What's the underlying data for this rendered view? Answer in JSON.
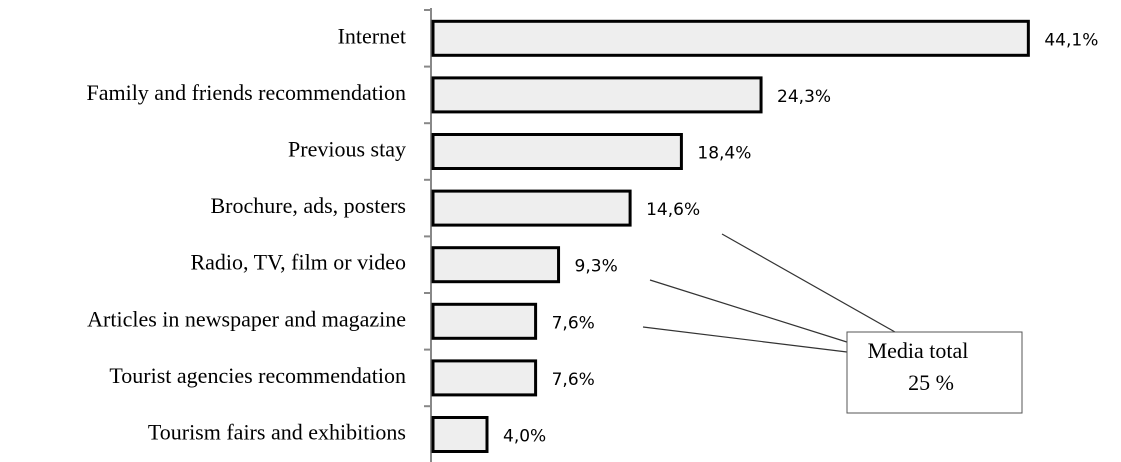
{
  "chart_data": {
    "type": "bar",
    "orientation": "horizontal",
    "categories": [
      "Internet",
      "Family and friends recommendation",
      "Previous stay",
      "Brochure, ads, posters",
      "Radio, TV, film or video",
      "Articles in newspaper and magazine",
      "Tourist agencies recommendation",
      "Tourism fairs and exhibitions"
    ],
    "values": [
      44.1,
      24.3,
      18.4,
      14.6,
      9.3,
      7.6,
      7.6,
      4.0
    ],
    "value_labels": [
      "44,1%",
      "24,3%",
      "18,4%",
      "14,6%",
      "9,3%",
      "7,6%",
      "7,6%",
      "4,0%"
    ],
    "color": "#eeeeee",
    "annotation": {
      "lines": [
        "Media total",
        "25 %"
      ]
    }
  }
}
